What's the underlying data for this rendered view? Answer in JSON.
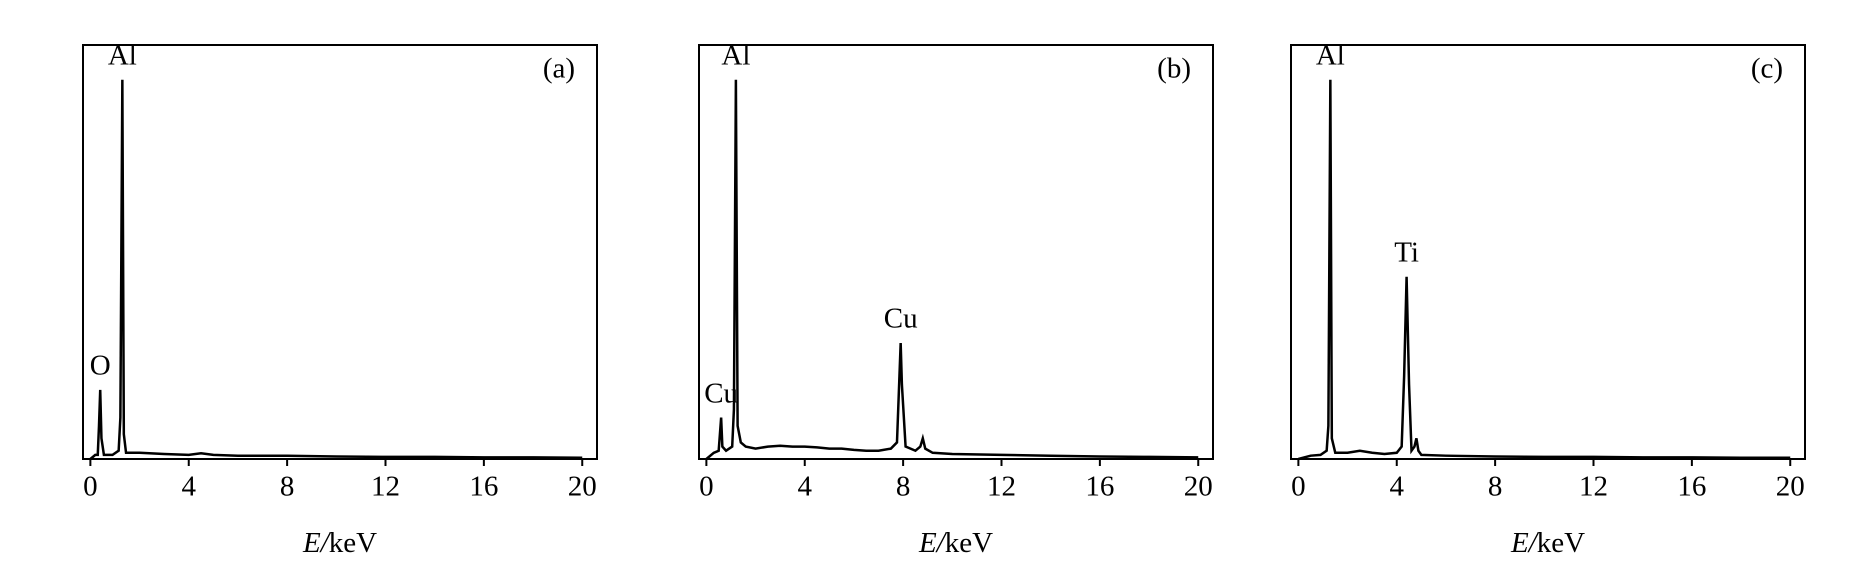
{
  "chart_data": [
    {
      "type": "line",
      "label": "(a)",
      "xlabel": "E/keV",
      "color": "#000000",
      "x": [
        0,
        0.2,
        0.3,
        0.35,
        0.4,
        0.45,
        0.55,
        0.9,
        1.15,
        1.22,
        1.3,
        1.36,
        1.45,
        2,
        3,
        4,
        4.5,
        5,
        6,
        8,
        10,
        12,
        14,
        16,
        18,
        20
      ],
      "values": [
        0,
        1,
        1,
        8,
        16.7,
        5,
        1,
        1,
        2,
        10,
        91.6,
        6,
        1.5,
        1.5,
        1.2,
        1,
        1.4,
        1,
        0.8,
        0.8,
        0.6,
        0.5,
        0.5,
        0.4,
        0.4,
        0.3
      ],
      "annotations": [
        {
          "text": "O",
          "x": 0.4
        },
        {
          "text": "Al",
          "x": 1.3
        }
      ],
      "xlim": [
        -0.3,
        20.6
      ],
      "xticks": [
        0,
        4,
        8,
        12,
        16,
        20
      ],
      "ylim": [
        0,
        100
      ]
    },
    {
      "type": "line",
      "label": "(b)",
      "xlabel": "E/keV",
      "color": "#000000",
      "x": [
        0,
        0.3,
        0.5,
        0.55,
        0.6,
        0.65,
        0.8,
        1.05,
        1.12,
        1.2,
        1.27,
        1.4,
        1.6,
        2,
        2.5,
        3,
        3.5,
        4,
        4.5,
        5,
        5.5,
        6,
        6.5,
        7,
        7.5,
        7.75,
        7.85,
        7.9,
        7.95,
        8.1,
        8.5,
        8.7,
        8.8,
        8.9,
        9.2,
        10,
        12,
        14,
        16,
        18,
        20
      ],
      "values": [
        0,
        1.5,
        2,
        6,
        10,
        3,
        2,
        3,
        12,
        91.6,
        8,
        4,
        3,
        2.5,
        3,
        3.2,
        3,
        3,
        2.8,
        2.5,
        2.5,
        2.2,
        2,
        2,
        2.5,
        4,
        20,
        28,
        18,
        3,
        2,
        3,
        5,
        2.5,
        1.5,
        1.2,
        1,
        0.8,
        0.6,
        0.5,
        0.4
      ],
      "annotations": [
        {
          "text": "Cu",
          "x": 0.6
        },
        {
          "text": "Al",
          "x": 1.2
        },
        {
          "text": "Cu",
          "x": 7.9
        }
      ],
      "xlim": [
        -0.3,
        20.6
      ],
      "xticks": [
        0,
        4,
        8,
        12,
        16,
        20
      ],
      "ylim": [
        0,
        100
      ]
    },
    {
      "type": "line",
      "label": "(c)",
      "xlabel": "E/keV",
      "color": "#000000",
      "x": [
        0,
        0.5,
        0.9,
        1.15,
        1.22,
        1.3,
        1.36,
        1.5,
        2,
        2.5,
        3,
        3.5,
        4,
        4.2,
        4.3,
        4.4,
        4.5,
        4.6,
        4.72,
        4.8,
        4.88,
        5,
        6,
        8,
        10,
        12,
        14,
        16,
        18,
        20
      ],
      "values": [
        0,
        0.8,
        1,
        2,
        8,
        91.6,
        5,
        1.5,
        1.5,
        2,
        1.5,
        1.2,
        1.5,
        3,
        20,
        44,
        18,
        2,
        3,
        5,
        2,
        1,
        0.8,
        0.6,
        0.5,
        0.5,
        0.4,
        0.4,
        0.3,
        0.3
      ],
      "annotations": [
        {
          "text": "Al",
          "x": 1.3
        },
        {
          "text": "Ti",
          "x": 4.4
        }
      ],
      "xlim": [
        -0.3,
        20.6
      ],
      "xticks": [
        0,
        4,
        8,
        12,
        16,
        20
      ],
      "ylim": [
        0,
        100
      ]
    }
  ]
}
